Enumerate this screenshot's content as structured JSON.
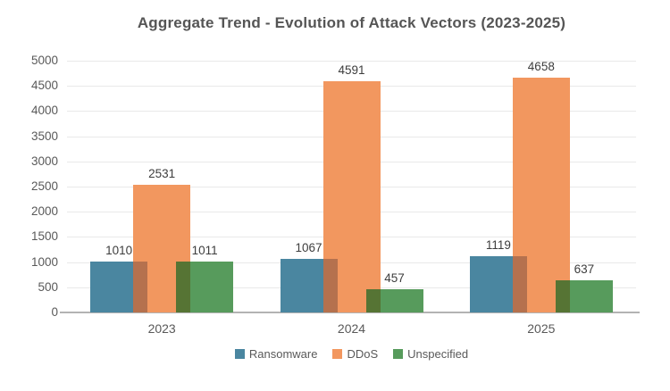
{
  "chart_data": {
    "type": "bar",
    "title": "Aggregate Trend - Evolution of Attack Vectors (2023-2025)",
    "categories": [
      "2023",
      "2024",
      "2025"
    ],
    "series": [
      {
        "name": "Ransomware",
        "color": "#4a86a0",
        "values": [
          1010,
          1067,
          1119
        ]
      },
      {
        "name": "DDoS",
        "color": "#f2975f",
        "values": [
          2531,
          4591,
          4658
        ]
      },
      {
        "name": "Unspecified",
        "color": "#579b5c",
        "values": [
          1011,
          457,
          637
        ]
      }
    ],
    "overlap_colors": {
      "ransomware_ddos": "#b5714e",
      "ddos_unspecified": "#567434"
    },
    "value_labels": true,
    "xlabel": "",
    "ylabel": "",
    "ylim": [
      0,
      5000
    ],
    "yticks": [
      0,
      500,
      1000,
      1500,
      2000,
      2500,
      3000,
      3500,
      4000,
      4500,
      5000
    ],
    "grid": true,
    "legend_position": "bottom"
  },
  "styles": {
    "background": "#ffffff",
    "title_color": "#555555",
    "tick_color": "#595959",
    "value_label_color": "#3d3d3d",
    "gridline_color": "#e9e9e9",
    "axis_line_color": "#b3b3b3"
  }
}
